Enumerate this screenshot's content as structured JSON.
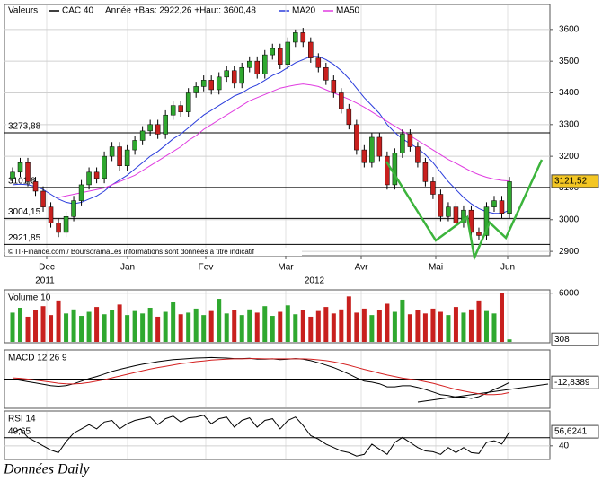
{
  "legend": {
    "label": "Valeurs",
    "series_name": "CAC 40",
    "range_text": "Année +Bas: 2922,26 +Haut: 3600,48",
    "ma20_name": "MA20",
    "ma50_name": "MA50"
  },
  "chart_data": [
    {
      "type": "candlestick",
      "up_color": "#2fa82f",
      "down_color": "#c8201e",
      "candles": [
        [
          3130,
          3165,
          3115,
          3150
        ],
        [
          3150,
          3195,
          3135,
          3180
        ],
        [
          3180,
          3195,
          3105,
          3120
        ],
        [
          3120,
          3135,
          3075,
          3090
        ],
        [
          3090,
          3105,
          3025,
          3040
        ],
        [
          3040,
          3055,
          2975,
          2990
        ],
        [
          2990,
          3005,
          2945,
          2960
        ],
        [
          2960,
          3025,
          2945,
          3010
        ],
        [
          3010,
          3075,
          2995,
          3060
        ],
        [
          3060,
          3125,
          3045,
          3110
        ],
        [
          3110,
          3165,
          3095,
          3150
        ],
        [
          3150,
          3165,
          3115,
          3130
        ],
        [
          3130,
          3215,
          3115,
          3200
        ],
        [
          3200,
          3245,
          3185,
          3230
        ],
        [
          3230,
          3245,
          3155,
          3170
        ],
        [
          3170,
          3235,
          3155,
          3220
        ],
        [
          3220,
          3265,
          3205,
          3250
        ],
        [
          3250,
          3295,
          3235,
          3280
        ],
        [
          3280,
          3315,
          3265,
          3300
        ],
        [
          3300,
          3315,
          3255,
          3270
        ],
        [
          3270,
          3345,
          3255,
          3330
        ],
        [
          3330,
          3375,
          3315,
          3360
        ],
        [
          3360,
          3375,
          3325,
          3340
        ],
        [
          3340,
          3415,
          3325,
          3400
        ],
        [
          3400,
          3435,
          3385,
          3420
        ],
        [
          3420,
          3455,
          3405,
          3440
        ],
        [
          3440,
          3455,
          3395,
          3410
        ],
        [
          3410,
          3465,
          3395,
          3450
        ],
        [
          3450,
          3485,
          3435,
          3470
        ],
        [
          3470,
          3485,
          3415,
          3430
        ],
        [
          3430,
          3495,
          3415,
          3480
        ],
        [
          3480,
          3515,
          3465,
          3500
        ],
        [
          3500,
          3515,
          3445,
          3460
        ],
        [
          3460,
          3535,
          3445,
          3520
        ],
        [
          3520,
          3555,
          3505,
          3540
        ],
        [
          3540,
          3555,
          3475,
          3490
        ],
        [
          3490,
          3575,
          3475,
          3560
        ],
        [
          3560,
          3600,
          3545,
          3590
        ],
        [
          3590,
          3605,
          3545,
          3560
        ],
        [
          3560,
          3575,
          3495,
          3510
        ],
        [
          3510,
          3525,
          3465,
          3480
        ],
        [
          3480,
          3495,
          3425,
          3440
        ],
        [
          3440,
          3455,
          3385,
          3400
        ],
        [
          3400,
          3415,
          3335,
          3350
        ],
        [
          3350,
          3365,
          3285,
          3300
        ],
        [
          3300,
          3315,
          3205,
          3220
        ],
        [
          3220,
          3235,
          3165,
          3180
        ],
        [
          3180,
          3275,
          3165,
          3260
        ],
        [
          3260,
          3275,
          3185,
          3200
        ],
        [
          3200,
          3215,
          3095,
          3110
        ],
        [
          3110,
          3225,
          3095,
          3210
        ],
        [
          3210,
          3285,
          3195,
          3270
        ],
        [
          3270,
          3285,
          3215,
          3230
        ],
        [
          3230,
          3245,
          3165,
          3180
        ],
        [
          3180,
          3195,
          3105,
          3120
        ],
        [
          3120,
          3135,
          3065,
          3080
        ],
        [
          3080,
          3095,
          2995,
          3010
        ],
        [
          3010,
          3055,
          2995,
          3040
        ],
        [
          3040,
          3055,
          2975,
          2990
        ],
        [
          2990,
          3045,
          2975,
          3030
        ],
        [
          3030,
          3045,
          2945,
          2960
        ],
        [
          2960,
          2975,
          2935,
          2950
        ],
        [
          2950,
          3055,
          2935,
          3040
        ],
        [
          3040,
          3075,
          3025,
          3060
        ],
        [
          3060,
          3075,
          3005,
          3020
        ],
        [
          3020,
          3135,
          3005,
          3120
        ]
      ],
      "series": [
        {
          "name": "MA20",
          "color": "#2a3cdc",
          "values": [
            3110,
            3112,
            3110,
            3105,
            3095,
            3080,
            3065,
            3055,
            3050,
            3055,
            3065,
            3075,
            3090,
            3110,
            3125,
            3140,
            3160,
            3180,
            3200,
            3215,
            3235,
            3255,
            3270,
            3290,
            3310,
            3330,
            3345,
            3360,
            3375,
            3390,
            3400,
            3415,
            3425,
            3440,
            3455,
            3465,
            3480,
            3495,
            3505,
            3515,
            3515,
            3505,
            3490,
            3470,
            3445,
            3415,
            3385,
            3360,
            3335,
            3300,
            3275,
            3255,
            3240,
            3225,
            3205,
            3180,
            3150,
            3120,
            3095,
            3070,
            3050,
            3035,
            3025,
            3020,
            3020,
            3030
          ]
        },
        {
          "name": "MA50",
          "color": "#e03ce0",
          "values": [
            null,
            null,
            null,
            null,
            null,
            null,
            3070,
            3075,
            3080,
            3085,
            3090,
            3095,
            3100,
            3110,
            3120,
            3130,
            3140,
            3155,
            3170,
            3185,
            3200,
            3215,
            3230,
            3250,
            3265,
            3285,
            3300,
            3315,
            3330,
            3345,
            3360,
            3375,
            3385,
            3395,
            3405,
            3415,
            3420,
            3425,
            3428,
            3425,
            3420,
            3410,
            3400,
            3390,
            3380,
            3368,
            3355,
            3340,
            3325,
            3310,
            3295,
            3280,
            3265,
            3250,
            3235,
            3220,
            3205,
            3190,
            3178,
            3165,
            3152,
            3142,
            3134,
            3128,
            3124,
            3122
          ]
        }
      ],
      "ylim": [
        2889,
        3676
      ],
      "yticks": [
        2900,
        3000,
        3100,
        3200,
        3300,
        3400,
        3500,
        3600
      ],
      "hlines": [
        {
          "value": 3273.88,
          "label": "3273,88"
        },
        {
          "value": 3101.8,
          "label": "3101,8"
        },
        {
          "value": 3004.15,
          "label": "3004,15"
        },
        {
          "value": 2921.85,
          "label": "2921,85"
        }
      ],
      "last": {
        "value": 3121.52,
        "label": "3121,52"
      },
      "xlabels": [
        "Dec",
        "Jan",
        "Fev",
        "Mar",
        "Avr",
        "Mai",
        "Jun"
      ],
      "years": [
        "2011",
        "2012"
      ],
      "source": "© IT-Finance.com / BoursoramaLes informations sont données à titre indicatif"
    },
    {
      "type": "bar",
      "title": "Volume 10",
      "values": [
        3600,
        4200,
        3100,
        3900,
        4400,
        3300,
        5100,
        3500,
        4000,
        3200,
        3700,
        4300,
        3400,
        3900,
        4600,
        3300,
        3800,
        3500,
        4200,
        3100,
        3700,
        4900,
        3400,
        3600,
        4100,
        3300,
        3800,
        5300,
        3500,
        3900,
        3300,
        4000,
        3600,
        4400,
        3200,
        3700,
        4500,
        3400,
        3900,
        3100,
        3800,
        4300,
        3500,
        4000,
        5600,
        3600,
        4100,
        3300,
        3900,
        4700,
        3700,
        5200,
        3400,
        3900,
        3500,
        4100,
        3700,
        3300,
        4300,
        3600,
        4000,
        5100,
        3800,
        3500,
        6000,
        308
      ],
      "ylim": [
        0,
        6300
      ],
      "yticks": [
        6000
      ],
      "last": {
        "value": 308,
        "label": "308"
      }
    },
    {
      "type": "line",
      "title": "MACD 12 26 9",
      "series": [
        {
          "color": "#000000",
          "values": [
            0,
            -5,
            -10,
            -15,
            -20,
            -25,
            -28,
            -25,
            -18,
            -8,
            2,
            10,
            20,
            30,
            38,
            45,
            52,
            58,
            63,
            68,
            72,
            76,
            78,
            80,
            82,
            83,
            84,
            83,
            82,
            80,
            80,
            81,
            78,
            78,
            79,
            76,
            78,
            80,
            78,
            72,
            64,
            55,
            45,
            33,
            20,
            5,
            -8,
            -12,
            -18,
            -30,
            -30,
            -26,
            -26,
            -32,
            -40,
            -50,
            -60,
            -64,
            -70,
            -70,
            -75,
            -68,
            -55,
            -40,
            -28,
            -12.8389
          ]
        },
        {
          "color": "#d42020",
          "values": [
            5,
            3,
            0,
            -4,
            -8,
            -12,
            -16,
            -18,
            -19,
            -17,
            -13,
            -8,
            -2,
            5,
            12,
            19,
            26,
            33,
            39,
            45,
            50,
            55,
            60,
            64,
            68,
            71,
            74,
            76,
            78,
            79,
            79,
            80,
            80,
            79,
            79,
            79,
            79,
            79,
            79,
            78,
            75,
            72,
            67,
            61,
            54,
            46,
            38,
            31,
            23,
            16,
            10,
            4,
            0,
            -4,
            -10,
            -16,
            -24,
            -32,
            -40,
            -46,
            -52,
            -57,
            -60,
            -60,
            -58,
            -52
          ]
        }
      ],
      "ylim": [
        -110,
        110
      ],
      "baseline": 0,
      "last": {
        "value": -12.8389,
        "label": "-12,8389"
      }
    },
    {
      "type": "line",
      "title": "RSI 14",
      "series": [
        {
          "color": "#000000",
          "values": [
            55,
            60,
            50,
            45,
            40,
            35,
            32,
            45,
            55,
            60,
            65,
            60,
            68,
            70,
            60,
            66,
            70,
            72,
            74,
            65,
            72,
            75,
            68,
            73,
            74,
            76,
            66,
            72,
            74,
            62,
            70,
            73,
            62,
            70,
            72,
            60,
            70,
            74,
            64,
            52,
            48,
            42,
            38,
            34,
            32,
            28,
            30,
            42,
            36,
            30,
            44,
            50,
            44,
            38,
            34,
            33,
            30,
            38,
            32,
            38,
            32,
            31,
            44,
            46,
            42,
            56.6241
          ]
        }
      ],
      "ylim": [
        25,
        80
      ],
      "yticks": [
        40
      ],
      "hlines": [
        {
          "value": 49.65,
          "label": "49,65"
        }
      ],
      "last": {
        "value": 56.6241,
        "label": "56,6241"
      }
    }
  ],
  "footer": "Données Daily"
}
